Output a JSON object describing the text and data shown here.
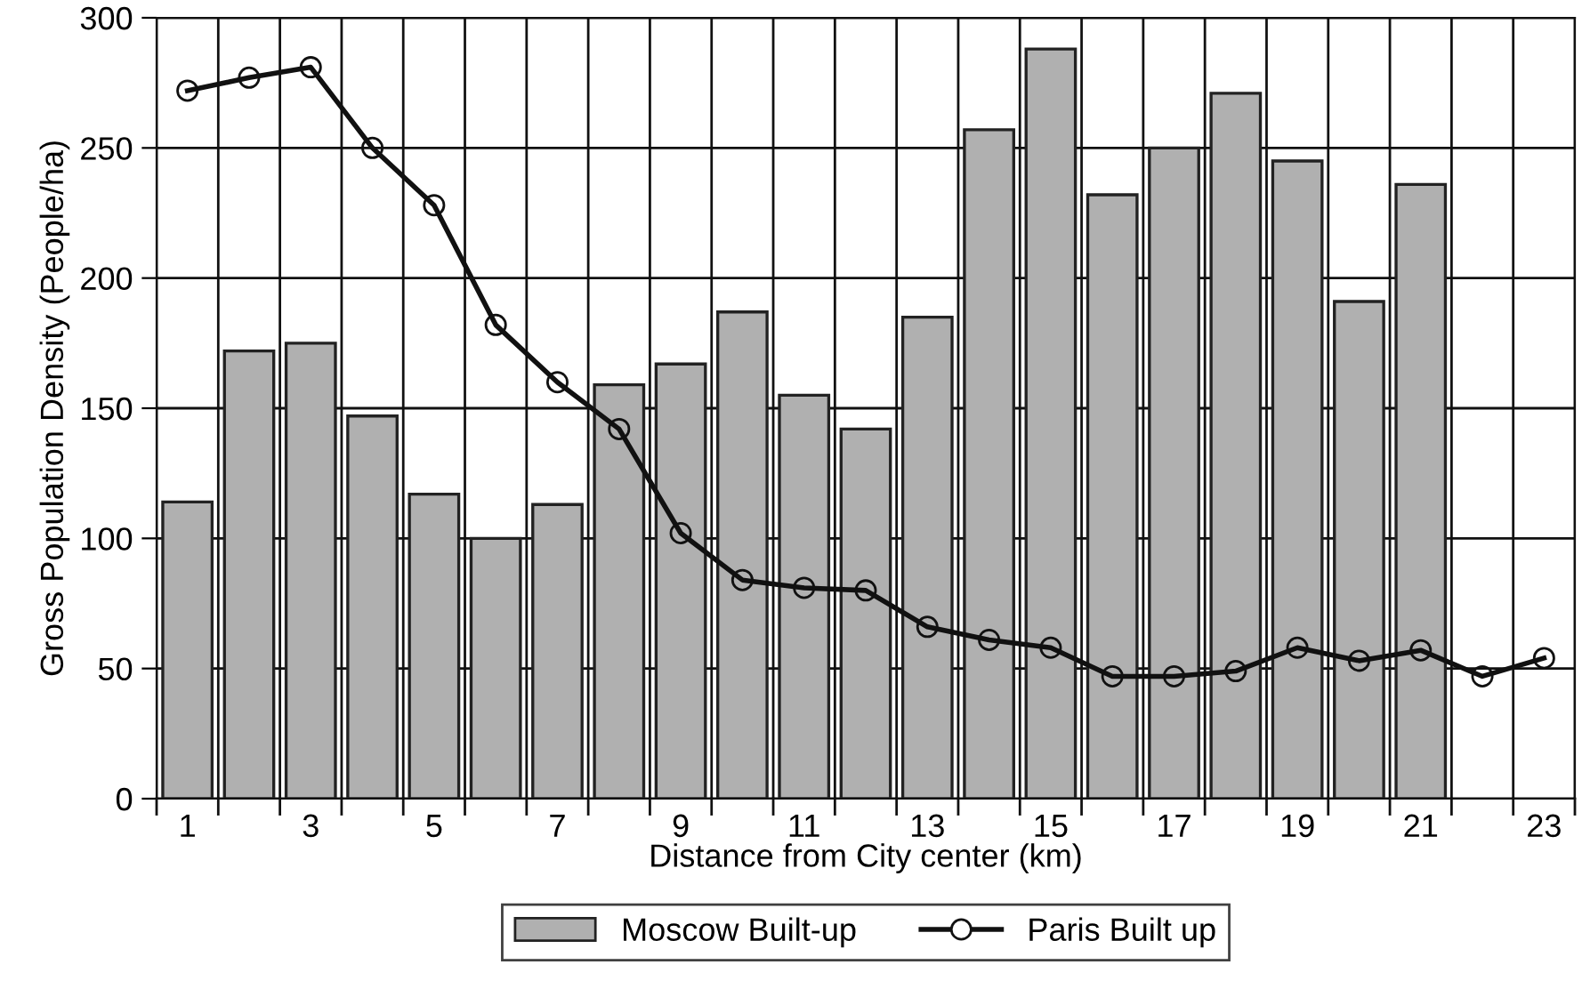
{
  "chart_data": {
    "type": "bar",
    "xlabel": "Distance from City center (km)",
    "ylabel": "Gross Population Density (People/ha)",
    "categories": [
      "1",
      null,
      "3",
      null,
      "5",
      null,
      "7",
      null,
      "9",
      null,
      "11",
      null,
      "13",
      null,
      "15",
      null,
      "17",
      null,
      "19",
      null,
      "21",
      null,
      "23"
    ],
    "series": [
      {
        "name": "Moscow Built-up",
        "color": "#b0b0b0",
        "values": [
          114,
          172,
          175,
          147,
          117,
          100,
          113,
          159,
          167,
          187,
          155,
          142,
          185,
          257,
          288,
          232,
          250,
          271,
          245,
          191,
          236,
          null,
          null
        ]
      },
      {
        "name": "Paris Built up",
        "type": "line",
        "color": "#111111",
        "marker": "circle",
        "line_style": "solid",
        "values": [
          272,
          277,
          281,
          250,
          228,
          182,
          160,
          142,
          102,
          84,
          81,
          80,
          66,
          61,
          58,
          47,
          47,
          49,
          58,
          53,
          57,
          47,
          54
        ]
      }
    ],
    "ylim": [
      0,
      300
    ],
    "yticks": [
      0,
      50,
      100,
      150,
      200,
      250,
      300
    ],
    "grid": true,
    "legend": "bottom"
  }
}
